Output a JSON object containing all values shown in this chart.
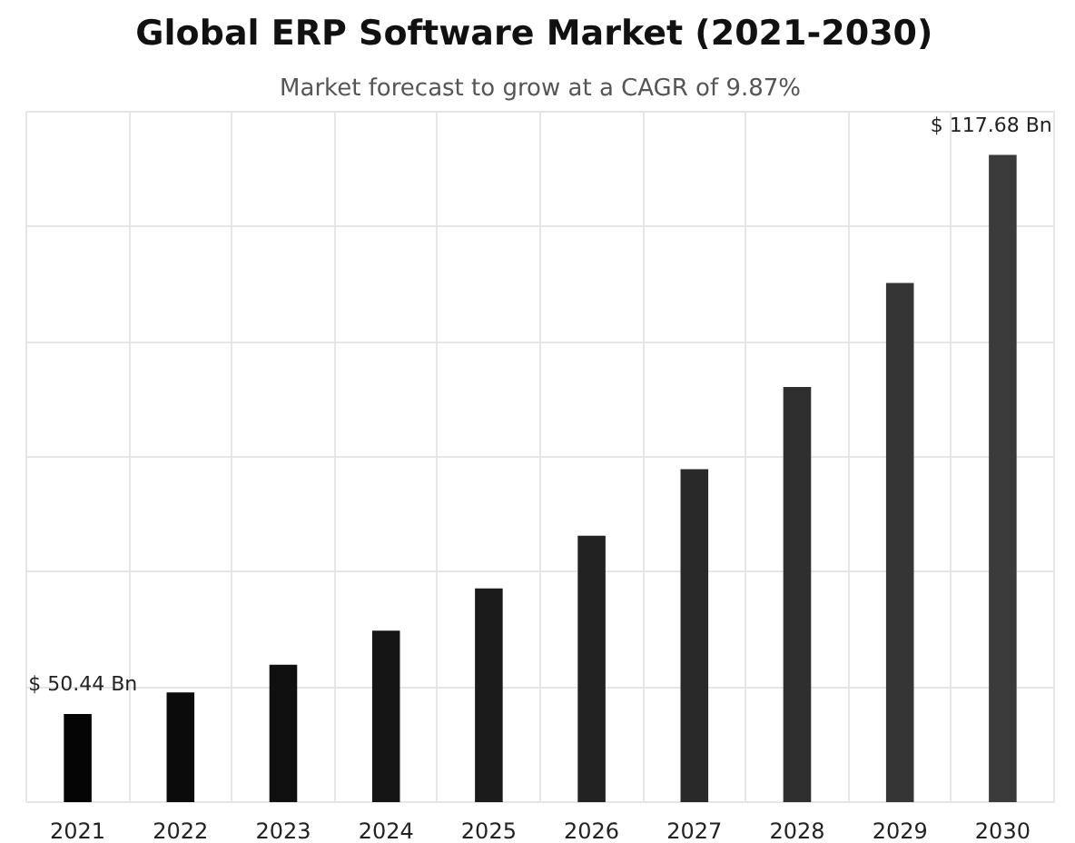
{
  "chart_data": {
    "type": "bar",
    "title": "Global ERP Software Market  (2021-2030)",
    "subtitle": "Market forecast to grow at a CAGR of 9.87%",
    "categories": [
      "2021",
      "2022",
      "2023",
      "2024",
      "2025",
      "2026",
      "2027",
      "2028",
      "2029",
      "2030"
    ],
    "values": [
      50.44,
      53.02,
      56.35,
      60.46,
      65.54,
      71.87,
      79.88,
      89.75,
      102.27,
      117.68
    ],
    "colors": [
      "#050505",
      "#0b0b0b",
      "#101010",
      "#151515",
      "#1b1b1b",
      "#222222",
      "#292929",
      "#2f2f2f",
      "#353535",
      "#3b3b3b"
    ],
    "value_labels": [
      "$ 50.44 Bn",
      null,
      null,
      null,
      null,
      null,
      null,
      null,
      null,
      "$ 117.68 Bn"
    ],
    "ylim": [
      39.83,
      122.87
    ],
    "yticks": [
      {
        "value": 53.67,
        "label": null
      },
      {
        "value": 67.51,
        "label": null
      },
      {
        "value": 81.35,
        "label": null
      },
      {
        "value": 95.19,
        "label": null
      },
      {
        "value": 109.03,
        "label": null
      }
    ],
    "tick_labels": "x",
    "grid": true
  }
}
